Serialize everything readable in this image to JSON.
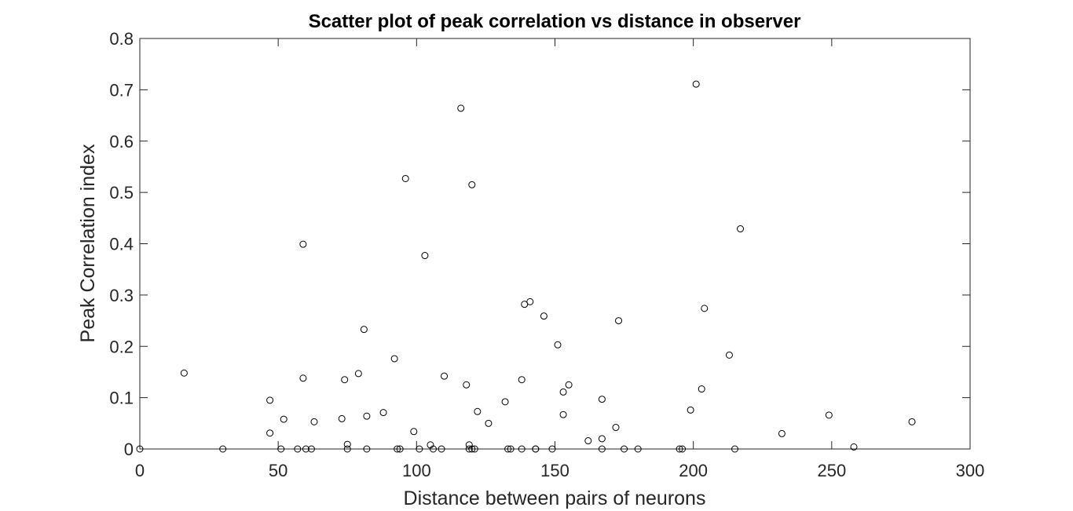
{
  "chart_data": {
    "type": "scatter",
    "title": "Scatter plot of peak correlation vs distance in observer",
    "xlabel": "Distance between pairs of neurons",
    "ylabel": "Peak Correlation index",
    "xlim": [
      0,
      300
    ],
    "ylim": [
      0,
      0.8
    ],
    "xticks": [
      "0",
      "50",
      "100",
      "150",
      "200",
      "250",
      "300"
    ],
    "yticks": [
      "0",
      "0.1",
      "0.2",
      "0.3",
      "0.4",
      "0.5",
      "0.6",
      "0.7",
      "0.8"
    ],
    "grid": false,
    "marker": "open-circle",
    "marker_color": "#000000",
    "points": [
      [
        0,
        0
      ],
      [
        16,
        0.148
      ],
      [
        30,
        0
      ],
      [
        47,
        0.095
      ],
      [
        47,
        0.031
      ],
      [
        51,
        0
      ],
      [
        52,
        0.058
      ],
      [
        57,
        0
      ],
      [
        59,
        0.399
      ],
      [
        59,
        0.138
      ],
      [
        60,
        0
      ],
      [
        62,
        0
      ],
      [
        63,
        0.053
      ],
      [
        73,
        0.059
      ],
      [
        74,
        0.135
      ],
      [
        75,
        0.009
      ],
      [
        75,
        0
      ],
      [
        79,
        0.147
      ],
      [
        81,
        0.233
      ],
      [
        82,
        0.064
      ],
      [
        82,
        0
      ],
      [
        88,
        0.071
      ],
      [
        92,
        0.176
      ],
      [
        93,
        0
      ],
      [
        94,
        0
      ],
      [
        96,
        0.527
      ],
      [
        99,
        0.034
      ],
      [
        101,
        0
      ],
      [
        103,
        0.377
      ],
      [
        105,
        0.008
      ],
      [
        106,
        0
      ],
      [
        109,
        0
      ],
      [
        110,
        0.142
      ],
      [
        116,
        0.664
      ],
      [
        118,
        0.125
      ],
      [
        119,
        0.008
      ],
      [
        119,
        0
      ],
      [
        120,
        0
      ],
      [
        120,
        0.515
      ],
      [
        121,
        0
      ],
      [
        122,
        0.073
      ],
      [
        126,
        0.05
      ],
      [
        132,
        0.092
      ],
      [
        133,
        0
      ],
      [
        134,
        0
      ],
      [
        138,
        0.135
      ],
      [
        138,
        0
      ],
      [
        139,
        0.282
      ],
      [
        141,
        0.287
      ],
      [
        143,
        0
      ],
      [
        143,
        0
      ],
      [
        146,
        0.259
      ],
      [
        149,
        0
      ],
      [
        151,
        0.203
      ],
      [
        153,
        0.111
      ],
      [
        153,
        0.067
      ],
      [
        155,
        0.125
      ],
      [
        162,
        0.016
      ],
      [
        167,
        0.097
      ],
      [
        167,
        0.02
      ],
      [
        167,
        0
      ],
      [
        172,
        0.042
      ],
      [
        173,
        0.25
      ],
      [
        175,
        0
      ],
      [
        180,
        0
      ],
      [
        195,
        0
      ],
      [
        196,
        0
      ],
      [
        199,
        0.076
      ],
      [
        201,
        0.711
      ],
      [
        203,
        0.117
      ],
      [
        204,
        0.274
      ],
      [
        213,
        0.183
      ],
      [
        215,
        0
      ],
      [
        217,
        0.429
      ],
      [
        232,
        0.03
      ],
      [
        249,
        0.066
      ],
      [
        258,
        0.004
      ],
      [
        279,
        0.053
      ]
    ]
  }
}
